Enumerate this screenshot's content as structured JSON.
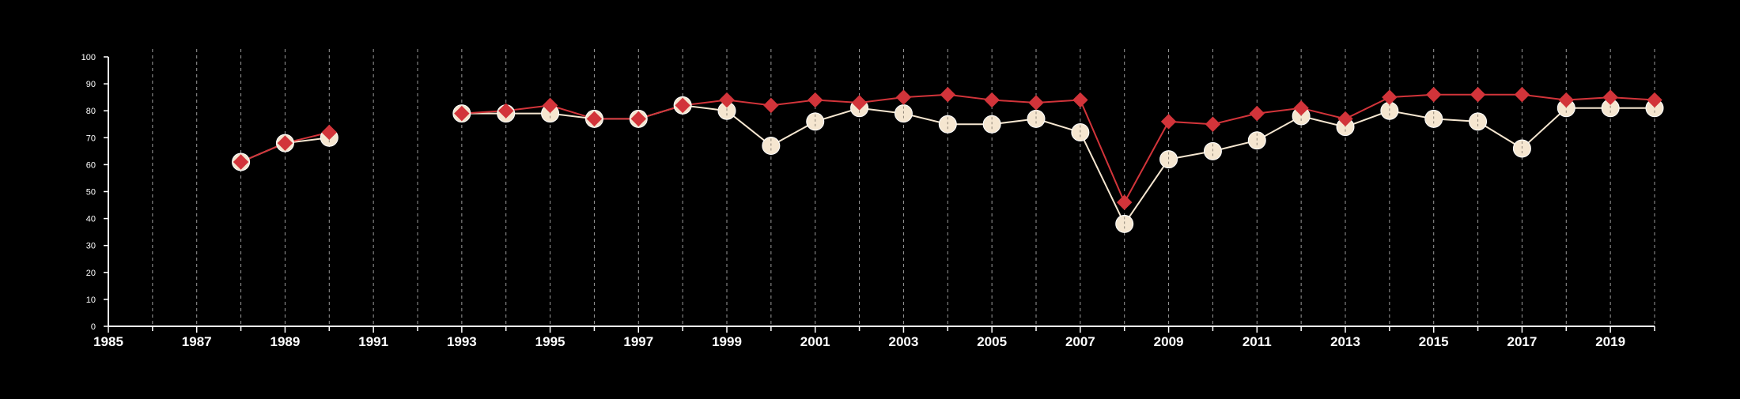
{
  "chart_data": {
    "type": "line",
    "title": "",
    "xlabel": "",
    "ylabel": "",
    "xlim": [
      1985,
      2020
    ],
    "ylim": [
      0,
      100
    ],
    "y_ticks": [
      0,
      10,
      20,
      30,
      40,
      50,
      60,
      70,
      80,
      90,
      100
    ],
    "x_ticks_labeled": [
      1985,
      1987,
      1989,
      1991,
      1993,
      1995,
      1997,
      1999,
      2001,
      2003,
      2005,
      2007,
      2009,
      2011,
      2013,
      2015,
      2017,
      2019
    ],
    "grid": "vertical dashed at every year",
    "background_color": "#000000",
    "x": [
      1988,
      1989,
      1990,
      1993,
      1994,
      1995,
      1996,
      1997,
      1998,
      1999,
      2000,
      2001,
      2002,
      2003,
      2004,
      2005,
      2006,
      2007,
      2008,
      2009,
      2010,
      2011,
      2012,
      2013,
      2014,
      2015,
      2016,
      2017,
      2018,
      2019,
      2020
    ],
    "series": [
      {
        "color": "#f5e6d0",
        "line_color": "#f5e6d0",
        "marker": "circle",
        "values": [
          61,
          68,
          70,
          79,
          79,
          79,
          77,
          77,
          82,
          80,
          67,
          76,
          81,
          79,
          75,
          75,
          77,
          72,
          38,
          62,
          65,
          69,
          78,
          74,
          80,
          77,
          76,
          66,
          81,
          81,
          81
        ]
      },
      {
        "color": "#d2343a",
        "line_color": "#d2343a",
        "marker": "diamond",
        "values": [
          61,
          68,
          72,
          79,
          80,
          82,
          77,
          77,
          82,
          84,
          82,
          84,
          83,
          85,
          86,
          84,
          83,
          84,
          46,
          76,
          75,
          79,
          81,
          77,
          85,
          86,
          86,
          86,
          84,
          85,
          84
        ]
      }
    ]
  }
}
